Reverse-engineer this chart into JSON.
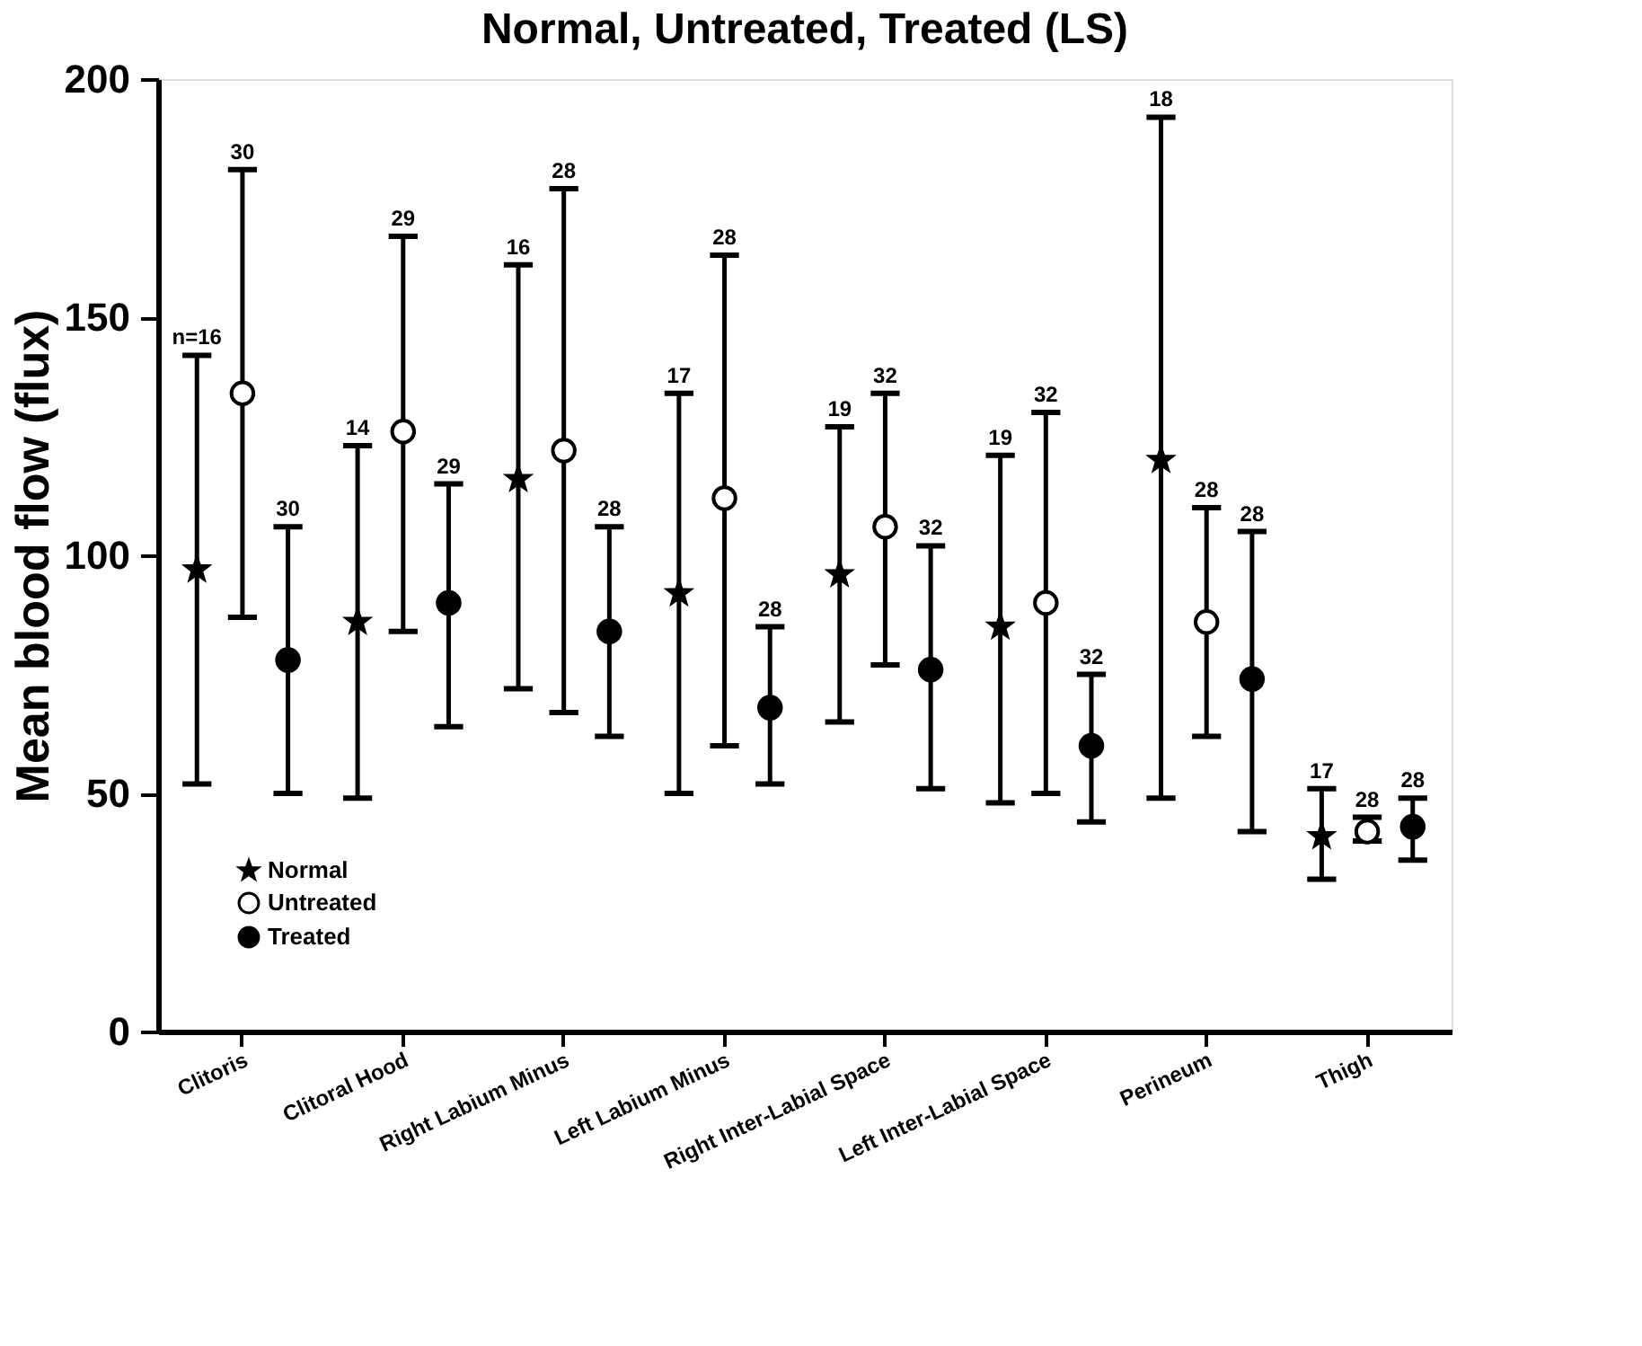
{
  "chart_data": {
    "type": "scatter",
    "title": "Normal, Untreated, Treated (LS)",
    "ylabel": "Mean blood flow (flux)",
    "categories": [
      "Clitoris",
      "Clitoral Hood",
      "Right Labium Minus",
      "Left Labium Minus",
      "Right Inter-Labial Space",
      "Left Inter-Labial Space",
      "Perineum",
      "Thigh"
    ],
    "series": [
      {
        "name": "Normal",
        "color": "#000000",
        "marker": "star",
        "values": [
          97,
          86,
          116,
          92,
          96,
          85,
          120,
          41
        ],
        "errors": [
          [
            52,
            142
          ],
          [
            49,
            123
          ],
          [
            72,
            161
          ],
          [
            50,
            134
          ],
          [
            65,
            127
          ],
          [
            48,
            121
          ],
          [
            49,
            192
          ],
          [
            32,
            51
          ]
        ]
      },
      {
        "name": "Untreated",
        "color": "#ffffff",
        "marker": "circle",
        "values": [
          134,
          126,
          122,
          112,
          106,
          90,
          86,
          42
        ],
        "errors": [
          [
            87,
            181
          ],
          [
            84,
            167
          ],
          [
            67,
            177
          ],
          [
            60,
            163
          ],
          [
            77,
            134
          ],
          [
            50,
            130
          ],
          [
            62,
            110
          ],
          [
            40,
            45
          ]
        ]
      },
      {
        "name": "Treated",
        "color": "#000000",
        "marker": "circle",
        "values": [
          78,
          90,
          84,
          68,
          76,
          60,
          74,
          43
        ],
        "errors": [
          [
            50,
            106
          ],
          [
            64,
            115
          ],
          [
            62,
            106
          ],
          [
            52,
            85
          ],
          [
            51,
            102
          ],
          [
            44,
            75
          ],
          [
            42,
            105
          ],
          [
            36,
            49
          ]
        ]
      }
    ],
    "annotations": [
      "n=16",
      "30",
      "30",
      "14",
      "29",
      "29",
      "16",
      "28",
      "28",
      "17",
      "28",
      "28",
      "19",
      "32",
      "32",
      "19",
      "32",
      "32",
      "18",
      "28",
      "28",
      "17",
      "28",
      "28"
    ],
    "ylim": [
      0,
      200
    ],
    "yticks": [
      0,
      50,
      100,
      150,
      200
    ],
    "grid": false,
    "legend": "bottom left"
  }
}
